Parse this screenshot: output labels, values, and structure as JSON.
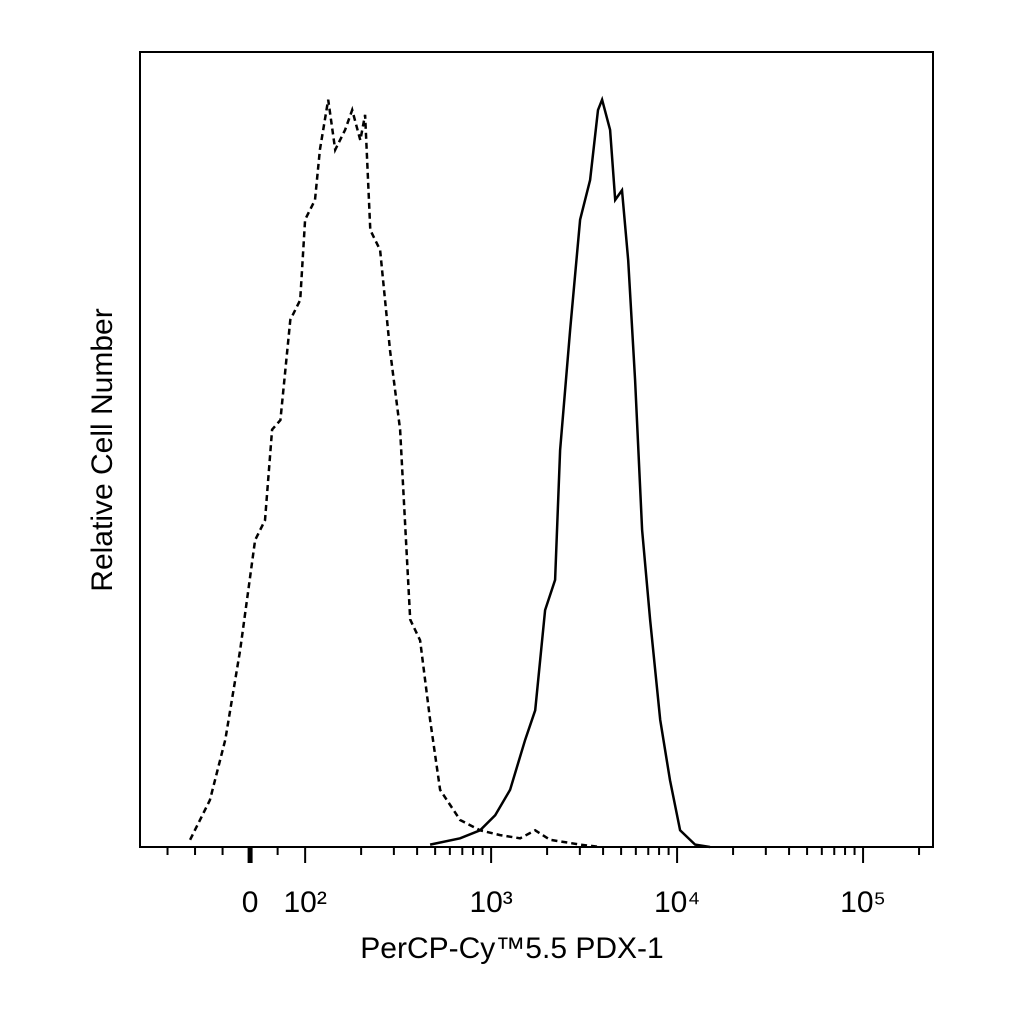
{
  "chart_data": {
    "type": "histogram-overlay",
    "xlabel": "PerCP-Cy™5.5 PDX-1",
    "ylabel": "Relative Cell Number",
    "xscale": "biexponential",
    "xlim": [
      -200,
      237700
    ],
    "ylim": [
      0,
      100
    ],
    "xticks": [
      {
        "value": 0,
        "label": "0"
      },
      {
        "value": 100,
        "label": "10²"
      },
      {
        "value": 1000,
        "label": "10³"
      },
      {
        "value": 10000,
        "label": "10⁴"
      },
      {
        "value": 100000,
        "label": "10⁵"
      }
    ],
    "xminorticks": [
      -150,
      -100,
      -50,
      50,
      200,
      300,
      400,
      500,
      600,
      700,
      800,
      900,
      2000,
      3000,
      4000,
      5000,
      6000,
      7000,
      8000,
      9000,
      20000,
      30000,
      40000,
      50000,
      60000,
      70000,
      80000,
      90000,
      200000
    ],
    "series": [
      {
        "color": "#000000",
        "dash": true,
        "x": [
          -109,
          -73,
          -45,
          -18,
          9,
          27,
          40,
          55,
          73,
          91,
          100,
          113,
          120,
          133,
          145,
          164,
          179,
          198,
          210,
          224,
          253,
          286,
          324,
          367,
          415,
          470,
          532,
          681,
          873,
          1117,
          1432,
          1725,
          2075,
          3008,
          3855
        ],
        "values": [
          0.9,
          5.9,
          13.5,
          24.8,
          38.6,
          41.1,
          52.5,
          53.7,
          66.3,
          68.8,
          78.9,
          81.4,
          87.7,
          94.0,
          87.7,
          90.2,
          92.7,
          88.9,
          92.1,
          77.6,
          75.1,
          62.5,
          52.5,
          28.6,
          26.0,
          16.0,
          7.2,
          3.4,
          2.1,
          1.5,
          1.1,
          2.1,
          0.9,
          0.3,
          0
        ]
      },
      {
        "color": "#000000",
        "dash": false,
        "x": [
          470,
          681,
          873,
          1052,
          1265,
          1524,
          1725,
          1950,
          2208,
          2350,
          2660,
          3008,
          3404,
          3758,
          3951,
          4365,
          4645,
          5058,
          5458,
          5943,
          6486,
          7161,
          8110,
          9163,
          10376,
          12502,
          15033
        ],
        "values": [
          0.3,
          1.1,
          2.1,
          4.0,
          7.2,
          13.5,
          17.2,
          29.8,
          33.6,
          49.9,
          65.0,
          78.9,
          83.9,
          92.7,
          94.0,
          90.2,
          81.4,
          82.6,
          73.8,
          58.7,
          39.9,
          28.6,
          16.0,
          8.4,
          2.1,
          0.3,
          0
        ]
      }
    ]
  }
}
